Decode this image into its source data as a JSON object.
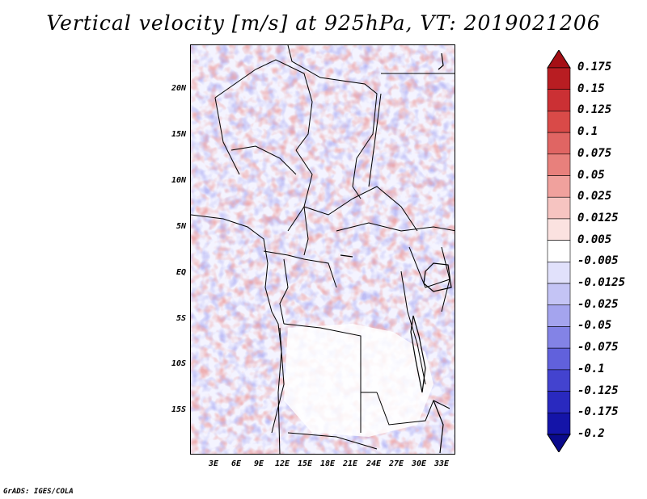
{
  "title": "Vertical velocity [m/s] at 925hPa, VT: 2019021206",
  "footer": "GrADS: IGES/COLA",
  "map": {
    "lat_labels": [
      "20N",
      "15N",
      "10N",
      "5N",
      "EQ",
      "5S",
      "10S",
      "15S"
    ],
    "lon_labels": [
      "3E",
      "6E",
      "9E",
      "12E",
      "15E",
      "18E",
      "21E",
      "24E",
      "27E",
      "30E",
      "33E"
    ]
  },
  "colorbar": {
    "labels": [
      "0.175",
      "0.15",
      "0.125",
      "0.1",
      "0.075",
      "0.05",
      "0.025",
      "0.0125",
      "0.005",
      "-0.005",
      "-0.0125",
      "-0.025",
      "-0.05",
      "-0.075",
      "-0.1",
      "-0.125",
      "-0.175",
      "-0.2"
    ],
    "colors": [
      "#a50f15",
      "#b81d22",
      "#cb3034",
      "#d94a48",
      "#e06563",
      "#e8807c",
      "#f0a19d",
      "#f6c4c1",
      "#fbe2e0",
      "#ffffff",
      "#e1e1fb",
      "#c4c4f5",
      "#a4a4ee",
      "#8383e6",
      "#6161dc",
      "#4343cf",
      "#2929bf",
      "#1414a8",
      "#0a0a8c"
    ]
  }
}
